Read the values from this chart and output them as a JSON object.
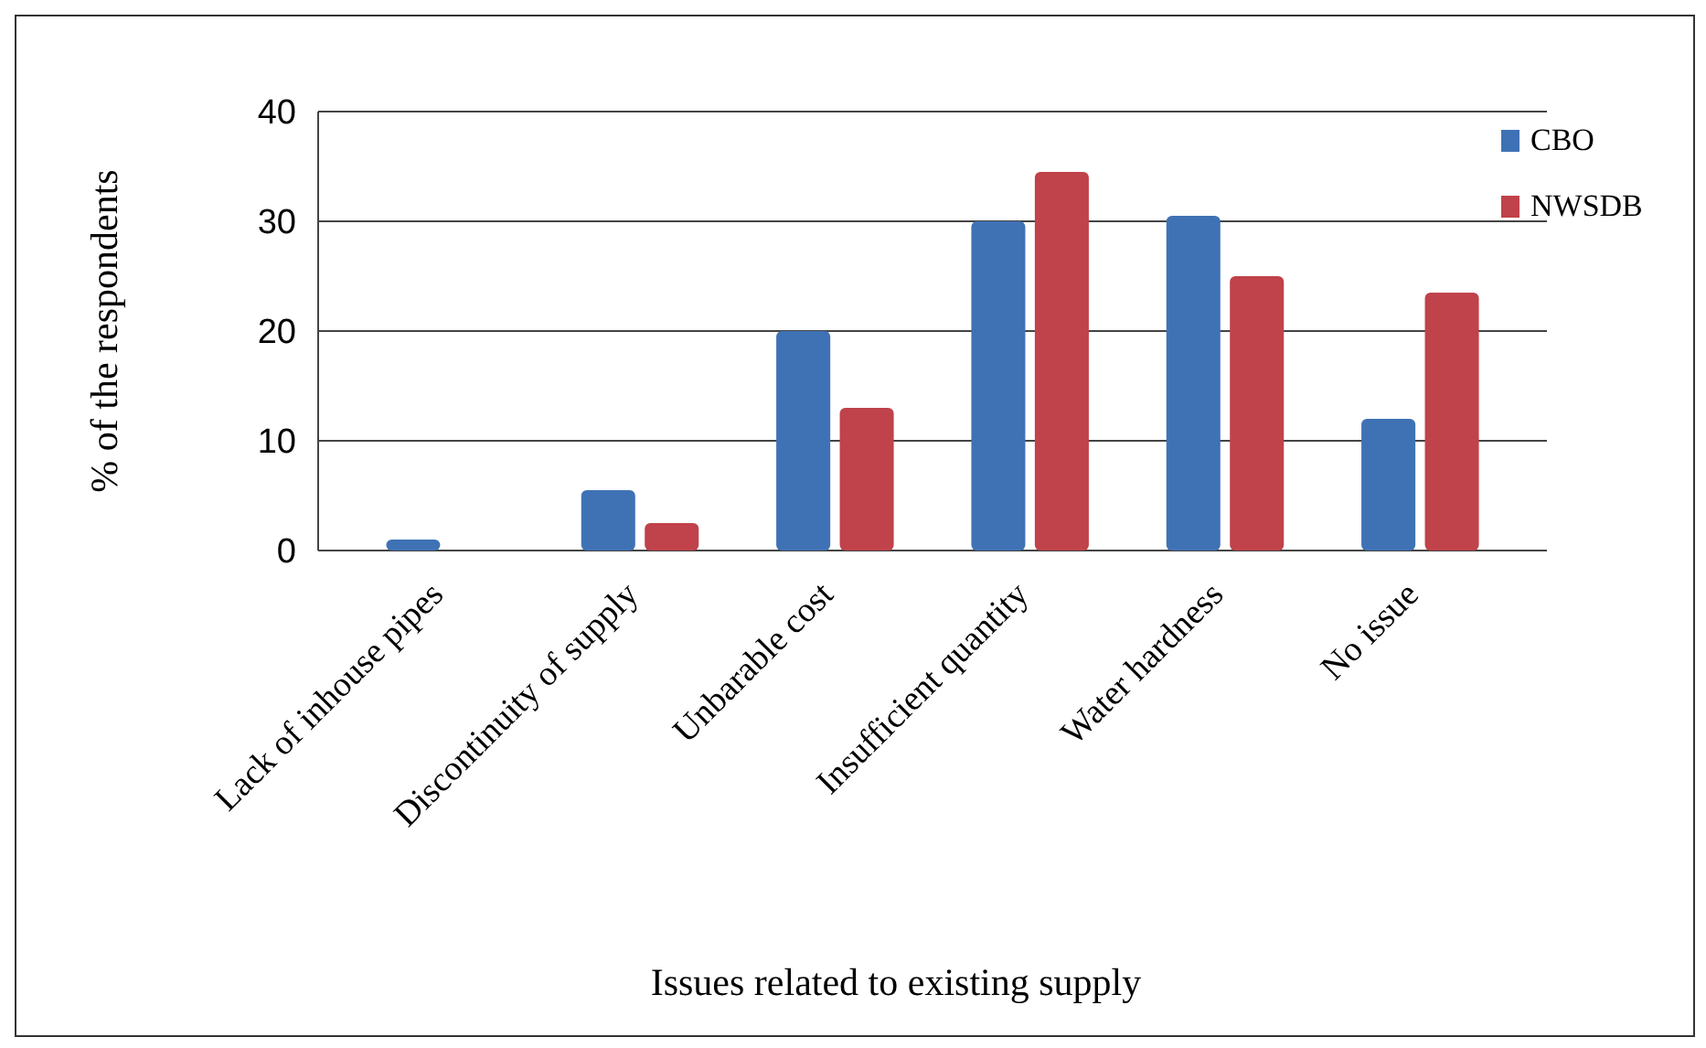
{
  "chart_data": {
    "type": "bar",
    "xlabel": "Issues related to existing supply",
    "ylabel": "% of the  respondents",
    "categories": [
      "Lack of inhouse pipes",
      "Discontinuity of supply",
      "Unbarable cost",
      "Insufficient quantity",
      "Water hardness",
      "No issue"
    ],
    "series": [
      {
        "name": "CBO",
        "color": "#3f72b5",
        "values": [
          1,
          5.5,
          20,
          30,
          30.5,
          12
        ]
      },
      {
        "name": "NWSDB",
        "color": "#c0424a",
        "values": [
          0,
          2.5,
          13,
          34.5,
          25,
          23.5
        ]
      }
    ],
    "ylim": [
      0,
      40
    ],
    "yticks": [
      0,
      10,
      20,
      30,
      40
    ],
    "grid": "y",
    "legend": "top right"
  }
}
